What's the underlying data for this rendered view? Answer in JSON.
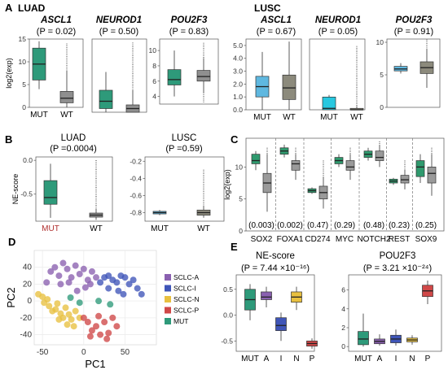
{
  "panel_letters": [
    "A",
    "B",
    "C",
    "D",
    "E"
  ],
  "group_labels": {
    "luad": "LUAD",
    "lusc": "LUSC"
  },
  "colors": {
    "mut_green": "#2e9a7a",
    "wt_gray": "#8f8f8f",
    "lusc_blue": "#5fb8e0",
    "lusc_gray": "#8c8a7c",
    "lusc_cyan": "#27c8e0",
    "c_green": "#2f9a6e",
    "c_gray": "#9a9a9a",
    "sclc_a": "#8a60b0",
    "sclc_i": "#3f55b8",
    "sclc_n": "#e8c040",
    "sclc_p": "#d04848",
    "mut": "#2e9a7a"
  },
  "chart_data": [
    {
      "id": "A-LUAD-ASCL1",
      "type": "box",
      "gene": "ASCL1",
      "pvalue": "(P = 0.02)",
      "ylabel": "log2(exp)",
      "ylim": [
        0,
        15
      ],
      "yticks": [
        0,
        5,
        10,
        15
      ],
      "categories": [
        "MUT",
        "WT"
      ],
      "boxes": [
        {
          "q1": 6,
          "median": 9.5,
          "q3": 13,
          "wmin": 4,
          "wmax": 14.5
        },
        {
          "q1": 1,
          "median": 2,
          "q3": 3.5,
          "wmin": 0,
          "wmax": 8,
          "outlier_top": 14
        }
      ]
    },
    {
      "id": "A-LUAD-NEUROD1",
      "type": "box",
      "gene": "NEUROD1",
      "pvalue": "(P = 0.50)",
      "ylim": [
        0,
        10
      ],
      "categories": [],
      "boxes": [
        {
          "q1": 0.5,
          "median": 1.5,
          "q3": 3,
          "wmin": 0,
          "wmax": 5.5
        },
        {
          "q1": 0,
          "median": 0.5,
          "q3": 1,
          "wmin": 0,
          "wmax": 3,
          "outlier_top": 9.5
        }
      ]
    },
    {
      "id": "A-LUAD-POU2F3",
      "type": "box",
      "gene": "POU2F3",
      "pvalue": "(P = 0.83)",
      "ylim": [
        3,
        11.5
      ],
      "yticks": [
        4,
        6,
        8,
        10
      ],
      "categories": [],
      "boxes": [
        {
          "q1": 5.5,
          "median": 6.2,
          "q3": 7.5,
          "wmin": 4,
          "wmax": 10
        },
        {
          "q1": 6,
          "median": 6.6,
          "q3": 7.4,
          "wmin": 4.5,
          "wmax": 9,
          "outlier_top": 11,
          "outlier_bottom": 3.2
        }
      ]
    },
    {
      "id": "A-LUSC-ASCL1",
      "type": "box",
      "gene": "ASCL1",
      "pvalue": "(P = 0.67)",
      "ylim": [
        0,
        5.5
      ],
      "yticks": [
        0.0,
        1.0,
        2.0,
        3.0,
        4.0,
        5.0
      ],
      "ytick_labels": [
        "0.0",
        "1.0",
        "2.0",
        "3.0",
        "4.0",
        "5.0"
      ],
      "categories": [
        "MUT",
        "WT"
      ],
      "boxes": [
        {
          "q1": 1.0,
          "median": 1.8,
          "q3": 2.6,
          "wmin": 0,
          "wmax": 4.5
        },
        {
          "q1": 0.8,
          "median": 1.7,
          "q3": 2.7,
          "wmin": 0,
          "wmax": 5.3
        }
      ]
    },
    {
      "id": "A-LUSC-NEUROD1",
      "type": "box",
      "gene": "NEUROD1",
      "pvalue": "(P = 0.05)",
      "ylim": [
        0,
        10
      ],
      "categories": [
        "MUT",
        "WT"
      ],
      "boxes": [
        {
          "q1": 0,
          "median": 0.2,
          "q3": 1.8,
          "wmin": 0,
          "wmax": 2.1
        },
        {
          "q1": 0,
          "median": 0,
          "q3": 0.2,
          "wmin": 0,
          "wmax": 0.5,
          "outlier_top": 9
        }
      ]
    },
    {
      "id": "A-LUSC-POU2F3",
      "type": "box",
      "gene": "POU2F3",
      "pvalue": "(P = 0.91)",
      "ylim": [
        0,
        10.5
      ],
      "yticks": [
        0,
        5,
        10
      ],
      "categories": [],
      "boxes": [
        {
          "q1": 5.6,
          "median": 5.9,
          "q3": 6.3,
          "wmin": 5.2,
          "wmax": 6.8
        },
        {
          "q1": 5.2,
          "median": 6.1,
          "q3": 7,
          "wmin": 3,
          "wmax": 9,
          "outlier_top": 10.4
        }
      ]
    },
    {
      "id": "B-LUAD",
      "type": "box",
      "title": "LUAD",
      "pvalue": "(P =0.0004)",
      "ylabel": "NE-score",
      "ylim": [
        -0.9,
        0.05
      ],
      "yticks": [
        0.0,
        -0.5
      ],
      "ytick_labels": [
        "0.0",
        "-0.5"
      ],
      "categories": [
        "MUT",
        "WT"
      ],
      "boxes": [
        {
          "q1": -0.65,
          "median": -0.55,
          "q3": -0.3,
          "wmin": -0.85,
          "wmax": -0.05
        },
        {
          "q1": -0.84,
          "median": -0.81,
          "q3": -0.78,
          "wmin": -0.88,
          "wmax": -0.72,
          "outlier_top": 0
        }
      ]
    },
    {
      "id": "B-LUSC",
      "type": "box",
      "title": "LUSC",
      "pvalue": "(P =0.59)",
      "ylim": [
        -0.9,
        -0.15
      ],
      "yticks": [
        -0.2,
        -0.4,
        -0.6,
        -0.8
      ],
      "ytick_labels": [
        "-0.2",
        "-0.4",
        "-0.6",
        "-0.8"
      ],
      "categories": [
        "MUT",
        "WT"
      ],
      "boxes": [
        {
          "q1": -0.815,
          "median": -0.8,
          "q3": -0.785,
          "wmin": -0.83,
          "wmax": -0.77
        },
        {
          "q1": -0.83,
          "median": -0.8,
          "q3": -0.77,
          "wmin": -0.86,
          "wmax": -0.72,
          "outlier_top": -0.3
        }
      ]
    },
    {
      "id": "C",
      "type": "box",
      "ylabel": "log2(exp)",
      "ylim": [
        0,
        14.5
      ],
      "yticks": [
        0,
        5,
        10
      ],
      "genes": [
        "SOX2",
        "FOXA1",
        "CD274",
        "MYC",
        "NOTCH2",
        "REST",
        "SOX9"
      ],
      "pvalues": [
        "(0.003)",
        "(0.002)",
        "(0.47)",
        "(0.29)",
        "(0.48)",
        "(0.23)",
        "(0.25)"
      ],
      "pairs": [
        [
          {
            "q1": 10.5,
            "median": 11,
            "q3": 12,
            "wmin": 9.5,
            "wmax": 12.5
          },
          {
            "q1": 6,
            "median": 7.5,
            "q3": 9,
            "wmin": 3,
            "wmax": 12,
            "outlier_top": 13
          }
        ],
        [
          {
            "q1": 12,
            "median": 12.5,
            "q3": 13,
            "wmin": 11.5,
            "wmax": 13.5
          },
          {
            "q1": 9.5,
            "median": 10.5,
            "q3": 11,
            "wmin": 8,
            "wmax": 12,
            "outlier_top": 13
          }
        ],
        [
          {
            "q1": 6,
            "median": 6.3,
            "q3": 6.6,
            "wmin": 5.8,
            "wmax": 6.8
          },
          {
            "q1": 5,
            "median": 6,
            "q3": 7,
            "wmin": 3.5,
            "wmax": 8.5,
            "outlier_top": 11
          }
        ],
        [
          {
            "q1": 10.5,
            "median": 11,
            "q3": 11.5,
            "wmin": 10,
            "wmax": 12
          },
          {
            "q1": 9.5,
            "median": 10,
            "q3": 11,
            "wmin": 8,
            "wmax": 12,
            "outlier_top": 13
          }
        ],
        [
          {
            "q1": 11.5,
            "median": 12,
            "q3": 12.5,
            "wmin": 11,
            "wmax": 13
          },
          {
            "q1": 11,
            "median": 11.5,
            "q3": 12.5,
            "wmin": 10,
            "wmax": 13.5,
            "outlier_top": 14
          }
        ],
        [
          {
            "q1": 7.5,
            "median": 7.8,
            "q3": 8.1,
            "wmin": 7.2,
            "wmax": 8.3
          },
          {
            "q1": 7.5,
            "median": 8,
            "q3": 8.7,
            "wmin": 6.5,
            "wmax": 9.5,
            "outlier_top": 11
          }
        ],
        [
          {
            "q1": 8.5,
            "median": 10,
            "q3": 11,
            "wmin": 7.5,
            "wmax": 12
          },
          {
            "q1": 7.5,
            "median": 9,
            "q3": 10,
            "wmin": 5.5,
            "wmax": 12,
            "outlier_top": 13
          }
        ]
      ]
    },
    {
      "id": "D",
      "type": "scatter",
      "xlabel": "PC1",
      "ylabel": "PC2",
      "xlim": [
        -60,
        88
      ],
      "ylim": [
        -52,
        60
      ],
      "xticks": [
        -50,
        0,
        50
      ],
      "yticks": [
        -40,
        -20,
        0,
        20,
        40
      ],
      "legend": [
        "SCLC-A",
        "SCLC-I",
        "SCLC-N",
        "SCLC-P",
        "MUT"
      ],
      "series": [
        {
          "name": "SCLC-A",
          "points": [
            [
              -40,
              35
            ],
            [
              -35,
              40
            ],
            [
              -30,
              30
            ],
            [
              -25,
              45
            ],
            [
              -20,
              38
            ],
            [
              -15,
              28
            ],
            [
              -10,
              42
            ],
            [
              -5,
              32
            ],
            [
              0,
              38
            ],
            [
              5,
              25
            ],
            [
              10,
              35
            ],
            [
              15,
              28
            ],
            [
              -45,
              22
            ],
            [
              -28,
              20
            ],
            [
              -18,
              22
            ],
            [
              2,
              16
            ],
            [
              -8,
              12
            ],
            [
              8,
              20
            ]
          ]
        },
        {
          "name": "SCLC-I",
          "points": [
            [
              20,
              22
            ],
            [
              25,
              28
            ],
            [
              30,
              30
            ],
            [
              35,
              25
            ],
            [
              40,
              22
            ],
            [
              45,
              30
            ],
            [
              50,
              28
            ],
            [
              55,
              20
            ],
            [
              60,
              25
            ],
            [
              30,
              15
            ],
            [
              42,
              12
            ],
            [
              65,
              15
            ],
            [
              48,
              8
            ],
            [
              70,
              8
            ]
          ]
        },
        {
          "name": "SCLC-N",
          "points": [
            [
              -55,
              8
            ],
            [
              -50,
              5
            ],
            [
              -48,
              -2
            ],
            [
              -42,
              -6
            ],
            [
              -38,
              -12
            ],
            [
              -34,
              -10
            ],
            [
              -32,
              -3
            ],
            [
              -28,
              -15
            ],
            [
              -25,
              -20
            ],
            [
              -22,
              -8
            ],
            [
              -18,
              -16
            ],
            [
              -15,
              -22
            ],
            [
              -20,
              -28
            ],
            [
              -10,
              -12
            ],
            [
              -5,
              -20
            ],
            [
              -30,
              -22
            ],
            [
              -12,
              -30
            ],
            [
              -44,
              2
            ]
          ]
        },
        {
          "name": "SCLC-P",
          "points": [
            [
              0,
              -20
            ],
            [
              5,
              -25
            ],
            [
              10,
              -35
            ],
            [
              15,
              -30
            ],
            [
              20,
              -40
            ],
            [
              25,
              -25
            ],
            [
              30,
              -38
            ],
            [
              35,
              -20
            ],
            [
              18,
              -18
            ],
            [
              8,
              -42
            ],
            [
              28,
              -45
            ],
            [
              40,
              -30
            ]
          ]
        },
        {
          "name": "MUT",
          "points": [
            [
              -5,
              -2
            ],
            [
              18,
              0
            ],
            [
              32,
              -4
            ],
            [
              -16,
              4
            ]
          ]
        }
      ]
    },
    {
      "id": "E-NE-score",
      "type": "box",
      "title": "NE-score",
      "pvalue": "(P = 7.44 ×10⁻¹⁶)",
      "ylim": [
        -0.7,
        0.78
      ],
      "yticks": [
        0.5,
        0.0,
        -0.5
      ],
      "ytick_labels": [
        "0.5",
        "0.0",
        "-0.5"
      ],
      "categories": [
        "MUT",
        "A",
        "I",
        "N",
        "P"
      ],
      "boxes": [
        {
          "q1": 0.1,
          "median": 0.3,
          "q3": 0.5,
          "wmin": -0.1,
          "wmax": 0.6
        },
        {
          "q1": 0.3,
          "median": 0.35,
          "q3": 0.45,
          "wmin": 0.15,
          "wmax": 0.55
        },
        {
          "q1": -0.3,
          "median": -0.2,
          "q3": -0.05,
          "wmin": -0.5,
          "wmax": 0.05
        },
        {
          "q1": 0.25,
          "median": 0.35,
          "q3": 0.45,
          "wmin": 0.1,
          "wmax": 0.55
        },
        {
          "q1": -0.6,
          "median": -0.55,
          "q3": -0.5,
          "wmin": -0.65,
          "wmax": -0.45
        }
      ]
    },
    {
      "id": "E-POU2F3",
      "type": "box",
      "title": "POU2F3",
      "pvalue": "(P = 3.21 ×10⁻²⁴)",
      "ylim": [
        -0.5,
        7.6
      ],
      "yticks": [
        0,
        2,
        4,
        6
      ],
      "categories": [
        "MUT",
        "A",
        "I",
        "N",
        "P"
      ],
      "boxes": [
        {
          "q1": 0.2,
          "median": 0.8,
          "q3": 1.6,
          "wmin": 0,
          "wmax": 3.5
        },
        {
          "q1": 0.3,
          "median": 0.55,
          "q3": 0.8,
          "wmin": 0.1,
          "wmax": 1.3
        },
        {
          "q1": 0.4,
          "median": 0.8,
          "q3": 1.2,
          "wmin": 0.1,
          "wmax": 1.8
        },
        {
          "q1": 0.5,
          "median": 0.7,
          "q3": 0.9,
          "wmin": 0.2,
          "wmax": 1.2
        },
        {
          "q1": 5.3,
          "median": 5.9,
          "q3": 6.5,
          "wmin": 4.5,
          "wmax": 7
        }
      ]
    }
  ]
}
